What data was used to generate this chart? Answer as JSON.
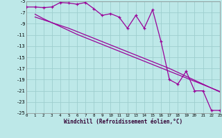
{
  "xlabel": "Windchill (Refroidissement éolien,°C)",
  "bg_color": "#bde8e8",
  "grid_color": "#9dcece",
  "line_color": "#990099",
  "xlim": [
    0,
    23
  ],
  "ylim": [
    -25,
    -5
  ],
  "xtick_vals": [
    0,
    1,
    2,
    3,
    4,
    5,
    6,
    7,
    8,
    9,
    10,
    11,
    12,
    13,
    14,
    15,
    16,
    17,
    18,
    19,
    20,
    21,
    22,
    23
  ],
  "ytick_vals": [
    -5,
    -7,
    -9,
    -11,
    -13,
    -15,
    -17,
    -19,
    -21,
    -23,
    -25
  ],
  "zigzag_x": [
    0,
    1,
    2,
    3,
    4,
    5,
    6,
    7,
    8,
    9,
    10,
    11,
    12,
    13,
    14,
    15,
    16,
    17,
    18,
    19,
    20,
    21,
    22,
    23
  ],
  "zigzag_y": [
    -6.0,
    -6.0,
    -6.1,
    -6.0,
    -5.2,
    -5.3,
    -5.5,
    -5.2,
    -6.3,
    -7.5,
    -7.2,
    -7.8,
    -9.8,
    -7.5,
    -9.8,
    -6.5,
    -12.2,
    -19.0,
    -19.8,
    -17.5,
    -21.0,
    -21.0,
    -24.5,
    -24.5
  ],
  "line_a_x": [
    1,
    2,
    3,
    4,
    5,
    6,
    7,
    8,
    9,
    10,
    11,
    12,
    13,
    14,
    15,
    16,
    17,
    18,
    19,
    20,
    21,
    22,
    23
  ],
  "line_a_y": [
    -7.8,
    -8.3,
    -8.8,
    -9.3,
    -9.8,
    -10.4,
    -11.0,
    -11.6,
    -12.2,
    -12.8,
    -13.4,
    -14.0,
    -14.6,
    -15.2,
    -15.8,
    -16.4,
    -17.0,
    -17.7,
    -18.4,
    -19.1,
    -19.8,
    -20.5,
    -21.2
  ],
  "line_b_x": [
    1,
    2,
    3,
    4,
    5,
    6,
    7,
    8,
    9,
    10,
    11,
    12,
    13,
    14,
    15,
    16,
    17,
    18,
    19,
    20,
    21,
    22,
    23
  ],
  "line_b_y": [
    -7.3,
    -8.1,
    -8.8,
    -9.5,
    -10.2,
    -10.9,
    -11.5,
    -12.1,
    -12.7,
    -13.3,
    -13.9,
    -14.5,
    -15.1,
    -15.7,
    -16.3,
    -16.9,
    -17.5,
    -18.1,
    -18.7,
    -19.3,
    -19.9,
    -20.5,
    -21.1
  ]
}
